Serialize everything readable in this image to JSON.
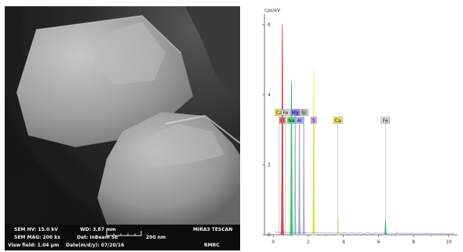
{
  "sem": {
    "hv": "SEM HV: 15.0 kV",
    "wd": "WD: 3.87 mm",
    "instrument": "MIRA3 TESCAN",
    "mag": "SEM MAG: 200 kx",
    "det": "Det: InBeam SE",
    "scale_label": "200 nm",
    "view_field": "View field: 1.04 µm",
    "date": "Date(m/d/y): 07/20/16",
    "lab": "RMRC"
  },
  "chart_data": {
    "type": "line",
    "ylabel": "cps/eV",
    "xlim": [
      -0.5,
      10.5
    ],
    "ylim": [
      0,
      6.3
    ],
    "x_ticks": [
      "0",
      "2",
      "4",
      "6",
      "8",
      "10"
    ],
    "y_ticks": [
      "0",
      "2",
      "4",
      "6"
    ],
    "grid": false,
    "series": [
      {
        "element": "O",
        "color": "#e0202a",
        "x": 0.52,
        "y": 6.0,
        "width": 0.09
      },
      {
        "element": "Na",
        "color": "#18c84a",
        "x": 1.04,
        "y": 4.4,
        "width": 0.09
      },
      {
        "element": "Mg",
        "color": "#8ad0d6",
        "x": 1.25,
        "y": 3.6,
        "width": 0.07
      },
      {
        "element": "Al",
        "color": "#9aa0ff",
        "x": 1.49,
        "y": 3.2,
        "width": 0.07
      },
      {
        "element": "Si",
        "color": "#b8b8b8",
        "x": 1.74,
        "y": 3.4,
        "width": 0.07
      },
      {
        "element": "S",
        "color": "#f4f040",
        "x": 2.31,
        "y": 4.7,
        "width": 0.09
      },
      {
        "element": "Ca",
        "color": "#f2ef60",
        "x": 3.69,
        "y": 0.45,
        "width": 0.06
      },
      {
        "element": "Fe",
        "color": "#2fbf6a",
        "x": 6.4,
        "y": 0.42,
        "width": 0.09
      },
      {
        "element": "Fe",
        "color": "#a0f0c0",
        "x": 7.06,
        "y": 0.12,
        "width": 0.06
      }
    ],
    "annotations": [
      {
        "label": "Ca",
        "x": 0.34,
        "y": 3.45,
        "line_x": 0.34
      },
      {
        "label": "Fe",
        "x": 0.7,
        "y": 3.45,
        "line_x": 0.7
      },
      {
        "label": "O",
        "x": 0.52,
        "y": 3.45,
        "line_x": 0.52
      },
      {
        "label": "Mg",
        "x": 1.25,
        "y": 3.45,
        "line_x": 1.25
      },
      {
        "label": "Si",
        "x": 1.74,
        "y": 3.45,
        "line_x": 1.74
      },
      {
        "label": "Na",
        "x": 1.04,
        "y": 3.45,
        "line_x": 1.04
      },
      {
        "label": "Al",
        "x": 1.49,
        "y": 3.45,
        "line_x": 1.49
      },
      {
        "label": "S",
        "x": 2.31,
        "y": 3.45,
        "line_x": 2.31
      },
      {
        "label": "Ca",
        "x": 3.69,
        "y": 3.45,
        "line_x": 3.69
      },
      {
        "label": "Fe",
        "x": 6.4,
        "y": 3.45,
        "line_x": 6.4
      }
    ]
  }
}
